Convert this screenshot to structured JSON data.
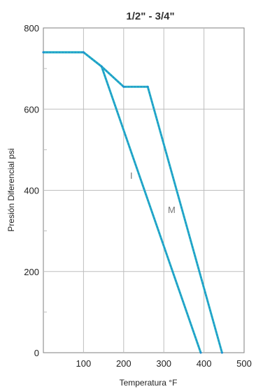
{
  "chart_data": {
    "type": "line",
    "title": "1/2\" - 3/4\"",
    "xlabel": "Temperatura °F",
    "ylabel": "Presión Diferencial psi",
    "xlim": [
      0,
      500
    ],
    "ylim": [
      0,
      800
    ],
    "xticks": [
      100,
      200,
      300,
      400,
      500
    ],
    "yticks": [
      0,
      200,
      400,
      600,
      800
    ],
    "grid": true,
    "series": [
      {
        "name": "I",
        "points": [
          [
            0,
            740
          ],
          [
            100,
            740
          ],
          [
            145,
            705
          ],
          [
            392,
            0
          ]
        ]
      },
      {
        "name": "M",
        "points": [
          [
            0,
            740
          ],
          [
            100,
            740
          ],
          [
            145,
            705
          ],
          [
            200,
            655
          ],
          [
            260,
            655
          ],
          [
            445,
            0
          ]
        ]
      }
    ],
    "colors": {
      "series": "#2ab5c5",
      "dots": "#1e8fd0",
      "grid": "#bdbdbd",
      "axis": "#7f7f7f"
    }
  }
}
